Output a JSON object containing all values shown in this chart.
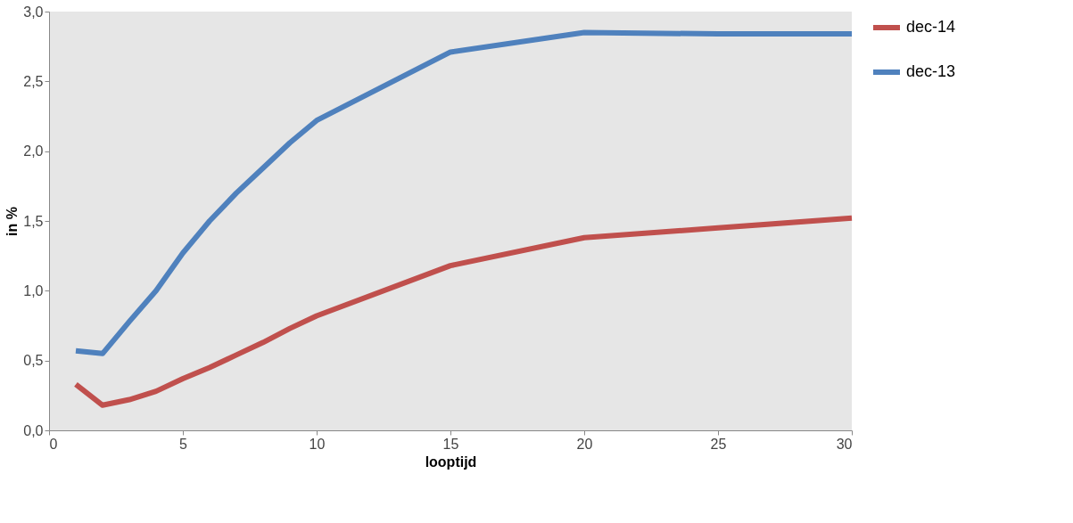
{
  "chart_data": {
    "type": "line",
    "xlabel": "looptijd",
    "ylabel": "in %",
    "xlim": [
      0,
      30
    ],
    "xticks": [
      0,
      5,
      10,
      15,
      20,
      25,
      30
    ],
    "ylim": [
      0,
      3
    ],
    "yticks": [
      {
        "value": 0,
        "label": "0,0"
      },
      {
        "value": 0.5,
        "label": "0,5"
      },
      {
        "value": 1,
        "label": "1,0"
      },
      {
        "value": 1.5,
        "label": "1,5"
      },
      {
        "value": 2,
        "label": "2,0"
      },
      {
        "value": 2.5,
        "label": "2,5"
      },
      {
        "value": 3,
        "label": "3,0"
      }
    ],
    "x": [
      1,
      2,
      3,
      4,
      5,
      6,
      7,
      8,
      9,
      10,
      15,
      20,
      25,
      30
    ],
    "legend": "right",
    "grid": false,
    "marker": "none",
    "line_style": "solid",
    "series": [
      {
        "name": "dec-14",
        "color": "#c0504d",
        "values": [
          0.33,
          0.18,
          0.22,
          0.28,
          0.37,
          0.45,
          0.54,
          0.63,
          0.73,
          0.82,
          1.18,
          1.38,
          1.45,
          1.52
        ]
      },
      {
        "name": "dec-13",
        "color": "#4f81bd",
        "values": [
          0.57,
          0.55,
          0.78,
          1.0,
          1.27,
          1.5,
          1.7,
          1.88,
          2.06,
          2.22,
          2.71,
          2.85,
          2.84,
          2.84
        ]
      }
    ]
  }
}
